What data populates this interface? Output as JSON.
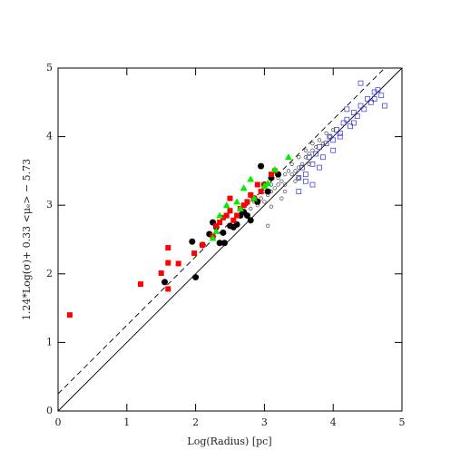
{
  "chart_data": {
    "type": "scatter",
    "xlabel": "Log(Radius) [pc]",
    "ylabel": "1.24*Log(σ)+ 0.33 <μₑ> − 5.73",
    "xlim": [
      0,
      5
    ],
    "ylim": [
      0,
      5
    ],
    "xticks": [
      0,
      1,
      2,
      3,
      4,
      5
    ],
    "yticks": [
      0,
      1,
      2,
      3,
      4,
      5
    ],
    "lines": [
      {
        "slope": 1,
        "intercept": 0,
        "style": "solid"
      },
      {
        "slope": 1,
        "intercept": 0.25,
        "style": "dashed"
      }
    ],
    "series": [
      {
        "marker": "open-square",
        "color": "#3030d0",
        "x": [
          3.5,
          3.55,
          3.6,
          3.65,
          3.7,
          3.75,
          3.8,
          3.85,
          3.9,
          3.95,
          4.0,
          4.05,
          4.1,
          4.15,
          4.2,
          4.25,
          4.3,
          4.35,
          4.4,
          4.45,
          4.5,
          4.55,
          4.6,
          4.65,
          4.7,
          4.75,
          3.6,
          3.8,
          4.0,
          4.2,
          4.4,
          3.7,
          4.1,
          4.3,
          3.5,
          4.6
        ],
        "y": [
          3.4,
          3.55,
          3.45,
          3.7,
          3.6,
          3.75,
          3.85,
          3.7,
          3.9,
          4.0,
          3.95,
          4.1,
          4.05,
          4.2,
          4.25,
          4.15,
          4.35,
          4.3,
          4.45,
          4.4,
          4.55,
          4.5,
          4.65,
          4.68,
          4.6,
          4.45,
          3.35,
          3.55,
          3.8,
          4.4,
          4.78,
          3.3,
          4.0,
          4.2,
          3.2,
          4.55
        ]
      },
      {
        "marker": "small-open-circle",
        "color": "#333333",
        "x": [
          2.8,
          2.85,
          2.9,
          2.95,
          3.0,
          3.0,
          3.05,
          3.1,
          3.1,
          3.15,
          3.2,
          3.2,
          3.25,
          3.3,
          3.3,
          3.35,
          3.4,
          3.4,
          3.45,
          3.5,
          3.5,
          3.55,
          3.6,
          3.6,
          3.65,
          3.7,
          3.7,
          3.75,
          3.8,
          3.85,
          3.9,
          3.95,
          4.0,
          3.1,
          3.3,
          3.5,
          3.05,
          3.25,
          3.45,
          3.65
        ],
        "y": [
          2.95,
          3.05,
          3.0,
          3.1,
          3.05,
          3.2,
          3.15,
          3.2,
          3.3,
          3.25,
          3.3,
          3.4,
          3.35,
          3.45,
          3.3,
          3.5,
          3.45,
          3.6,
          3.5,
          3.55,
          3.7,
          3.6,
          3.7,
          3.8,
          3.75,
          3.8,
          3.9,
          3.85,
          3.95,
          3.9,
          4.05,
          4.0,
          4.1,
          2.98,
          3.2,
          3.4,
          2.7,
          3.1,
          3.35,
          3.6
        ]
      },
      {
        "marker": "filled-circle",
        "color": "#000000",
        "x": [
          1.55,
          1.95,
          2.0,
          2.1,
          2.2,
          2.25,
          2.3,
          2.35,
          2.4,
          2.42,
          2.5,
          2.55,
          2.6,
          2.65,
          2.7,
          2.75,
          2.8,
          2.85,
          2.9,
          2.95,
          3.0,
          3.05,
          3.1,
          3.2
        ],
        "y": [
          1.88,
          2.47,
          1.95,
          2.42,
          2.58,
          2.75,
          2.68,
          2.45,
          2.6,
          2.45,
          2.7,
          2.68,
          2.72,
          2.85,
          2.9,
          2.85,
          2.78,
          3.1,
          3.05,
          3.57,
          3.3,
          3.2,
          3.4,
          3.45
        ]
      },
      {
        "marker": "filled-square",
        "color": "#ff0000",
        "x": [
          0.17,
          1.2,
          1.5,
          1.6,
          1.6,
          1.6,
          1.75,
          1.98,
          2.1,
          2.25,
          2.3,
          2.35,
          2.4,
          2.45,
          2.5,
          2.5,
          2.55,
          2.6,
          2.65,
          2.7,
          2.75,
          2.8,
          2.85,
          2.9,
          2.95,
          3.0,
          3.1,
          3.15
        ],
        "y": [
          1.4,
          1.85,
          2.01,
          2.38,
          2.16,
          1.78,
          2.15,
          2.3,
          2.42,
          2.55,
          2.7,
          2.75,
          2.82,
          2.85,
          3.1,
          2.92,
          2.78,
          2.85,
          2.95,
          3.0,
          3.05,
          3.15,
          3.1,
          3.3,
          3.2,
          3.3,
          3.45,
          3.5
        ]
      },
      {
        "marker": "filled-triangle",
        "color": "#00ee00",
        "x": [
          2.25,
          2.3,
          2.35,
          2.45,
          2.6,
          2.65,
          2.7,
          2.8,
          2.85,
          3.0,
          3.05,
          3.15,
          3.35
        ],
        "y": [
          2.52,
          2.62,
          2.85,
          3.0,
          3.05,
          2.95,
          3.25,
          3.38,
          3.1,
          3.28,
          3.32,
          3.52,
          3.7
        ]
      }
    ]
  }
}
